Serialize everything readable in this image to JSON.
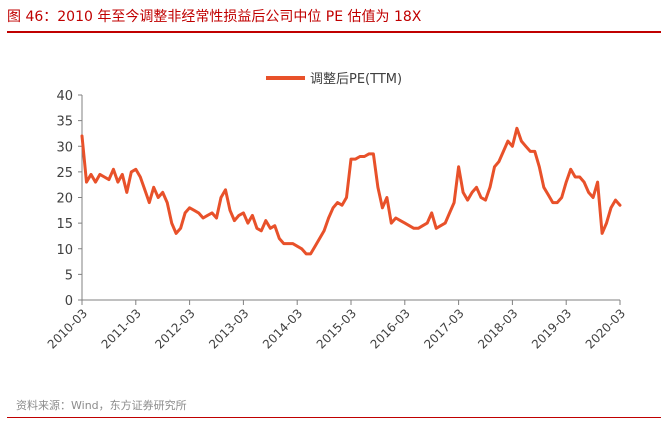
{
  "figure": {
    "title": "图 46：2010 年至今调整非经常性损益后公司中位 PE 估值为 18X",
    "source": "资料来源：Wind，东方证券研究所"
  },
  "colors": {
    "title": "#c00000",
    "series": "#e8512a",
    "axis": "#808080",
    "rule": "#c00000",
    "source": "#8c8c8c"
  },
  "chart_data": {
    "type": "line",
    "title": "",
    "xlabel": "",
    "ylabel": "",
    "ylim": [
      0,
      40
    ],
    "yticks": [
      "0",
      "5",
      "10",
      "15",
      "20",
      "25",
      "30",
      "35",
      "40"
    ],
    "xticks": [
      "2010-03",
      "2011-03",
      "2012-03",
      "2013-03",
      "2014-03",
      "2015-03",
      "2016-03",
      "2017-03",
      "2018-03",
      "2019-03",
      "2020-03"
    ],
    "xlim": [
      "2010-03",
      "2020-03"
    ],
    "grid": false,
    "legend_position": "top-center",
    "series": [
      {
        "name": "调整后PE(TTM)",
        "x": [
          "2010-03",
          "2010-04",
          "2010-05",
          "2010-06",
          "2010-07",
          "2010-08",
          "2010-09",
          "2010-10",
          "2010-11",
          "2010-12",
          "2011-01",
          "2011-02",
          "2011-03",
          "2011-04",
          "2011-05",
          "2011-06",
          "2011-07",
          "2011-08",
          "2011-09",
          "2011-10",
          "2011-11",
          "2011-12",
          "2012-01",
          "2012-02",
          "2012-03",
          "2012-04",
          "2012-05",
          "2012-06",
          "2012-07",
          "2012-08",
          "2012-09",
          "2012-10",
          "2012-11",
          "2012-12",
          "2013-01",
          "2013-02",
          "2013-03",
          "2013-04",
          "2013-05",
          "2013-06",
          "2013-07",
          "2013-08",
          "2013-09",
          "2013-10",
          "2013-11",
          "2013-12",
          "2014-01",
          "2014-02",
          "2014-03",
          "2014-04",
          "2014-05",
          "2014-06",
          "2014-07",
          "2014-08",
          "2014-09",
          "2014-10",
          "2014-11",
          "2014-12",
          "2015-01",
          "2015-02",
          "2015-03",
          "2015-04",
          "2015-05",
          "2015-06",
          "2015-07",
          "2015-08",
          "2015-09",
          "2015-10",
          "2015-11",
          "2015-12",
          "2016-01",
          "2016-02",
          "2016-03",
          "2016-04",
          "2016-05",
          "2016-06",
          "2016-07",
          "2016-08",
          "2016-09",
          "2016-10",
          "2016-11",
          "2016-12",
          "2017-01",
          "2017-02",
          "2017-03",
          "2017-04",
          "2017-05",
          "2017-06",
          "2017-07",
          "2017-08",
          "2017-09",
          "2017-10",
          "2017-11",
          "2017-12",
          "2018-01",
          "2018-02",
          "2018-03",
          "2018-04",
          "2018-05",
          "2018-06",
          "2018-07",
          "2018-08",
          "2018-09",
          "2018-10",
          "2018-11",
          "2018-12",
          "2019-01",
          "2019-02",
          "2019-03",
          "2019-04",
          "2019-05",
          "2019-06",
          "2019-07",
          "2019-08",
          "2019-09",
          "2019-10",
          "2019-11",
          "2019-12",
          "2020-01",
          "2020-02",
          "2020-03"
        ],
        "values": [
          32,
          23,
          24.5,
          23,
          24.5,
          24,
          23.5,
          25.5,
          23,
          24.5,
          21,
          25,
          25.5,
          24,
          21.5,
          19,
          22,
          20,
          21,
          19,
          15,
          13,
          14,
          17,
          18,
          17.5,
          17,
          16,
          16.5,
          17,
          16,
          20,
          21.5,
          17.5,
          15.5,
          16.5,
          17,
          15,
          16.5,
          14,
          13.5,
          15.5,
          14,
          14.5,
          12,
          11,
          11,
          11,
          10.5,
          10,
          9,
          9,
          10.5,
          12,
          13.5,
          16,
          18,
          19,
          18.5,
          20,
          27.5,
          27.5,
          28,
          28,
          28.5,
          28.5,
          22,
          18,
          20,
          15,
          16,
          15.5,
          15,
          14.5,
          14,
          14,
          14.5,
          15,
          17,
          14,
          14.5,
          15,
          17,
          19,
          26,
          21,
          19.5,
          21,
          22,
          20,
          19.5,
          22,
          26,
          27,
          29,
          31,
          30,
          33.5,
          31,
          30,
          29,
          29,
          26,
          22,
          20.5,
          19,
          19,
          20,
          23,
          25.5,
          24,
          24,
          23,
          21,
          20,
          23,
          13,
          15,
          18,
          19.5,
          18.5
        ]
      }
    ]
  }
}
